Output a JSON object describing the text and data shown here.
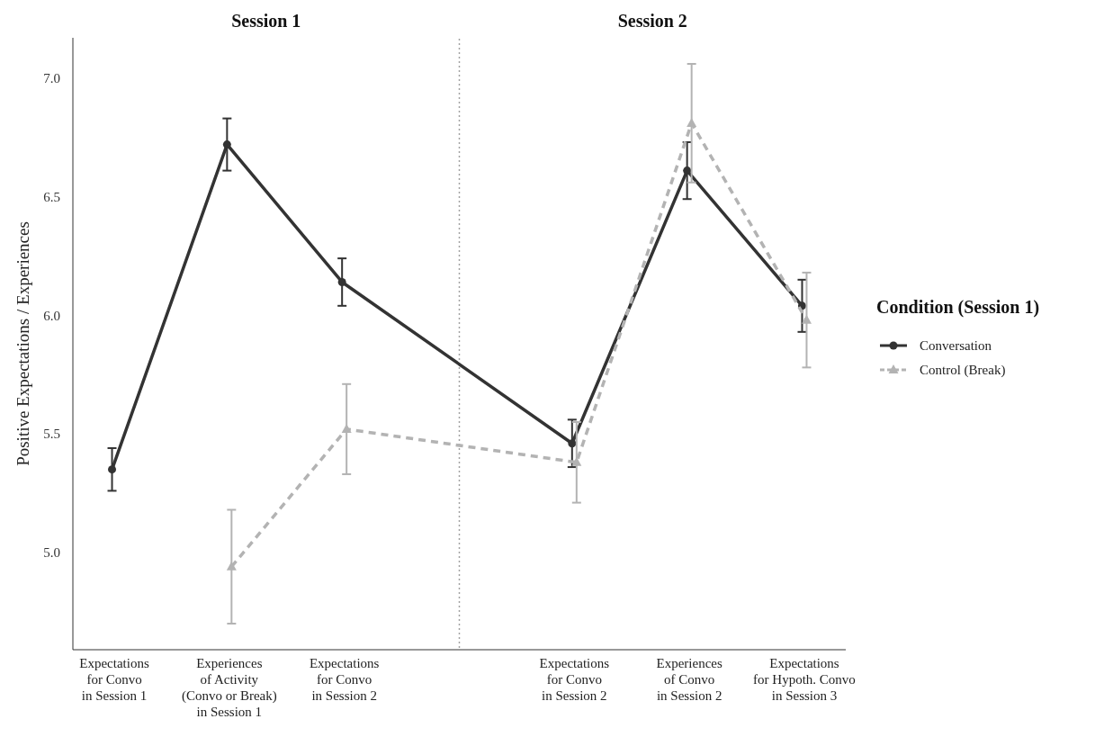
{
  "chart_data": {
    "type": "line",
    "ylabel": "Positive Expectations / Experiences",
    "legend_title": "Condition (Session 1)",
    "legend": "right",
    "grid": false,
    "annotations": [
      "Session 1",
      "Session 2"
    ],
    "categories": [
      "Expectations\nfor Convo\nin Session 1",
      "Experiences\nof Activity\n(Convo or Break)\nin Session 1",
      "Expectations\nfor Convo\nin Session 2",
      null,
      "Expectations\nfor Convo\nin Session 2",
      "Experiences\nof Convo\nin Session 2",
      "Expectations\nfor Hypoth. Convo\nin Session 3"
    ],
    "ylim": [
      4.59,
      7.17
    ],
    "yticks": [
      {
        "value": 5,
        "label": "5.0"
      },
      {
        "value": 5.5,
        "label": "5.5"
      },
      {
        "value": 6,
        "label": "6.0"
      },
      {
        "value": 6.5,
        "label": "6.5"
      },
      {
        "value": 7,
        "label": "7.0"
      }
    ],
    "series": [
      {
        "name": "Conversation",
        "color": "#333333",
        "marker": "circle",
        "line_style": "solid",
        "values": [
          5.35,
          6.72,
          6.14,
          null,
          5.46,
          6.61,
          6.04
        ],
        "errors": [
          0.09,
          0.11,
          0.1,
          null,
          0.1,
          0.12,
          0.11
        ]
      },
      {
        "name": "Control (Break)",
        "color": "#b3b3b3",
        "marker": "triangle",
        "line_style": "dashed",
        "values": [
          null,
          4.94,
          5.52,
          null,
          5.38,
          6.81,
          5.98
        ],
        "errors": [
          null,
          0.24,
          0.19,
          null,
          0.17,
          0.25,
          0.2
        ]
      }
    ]
  }
}
